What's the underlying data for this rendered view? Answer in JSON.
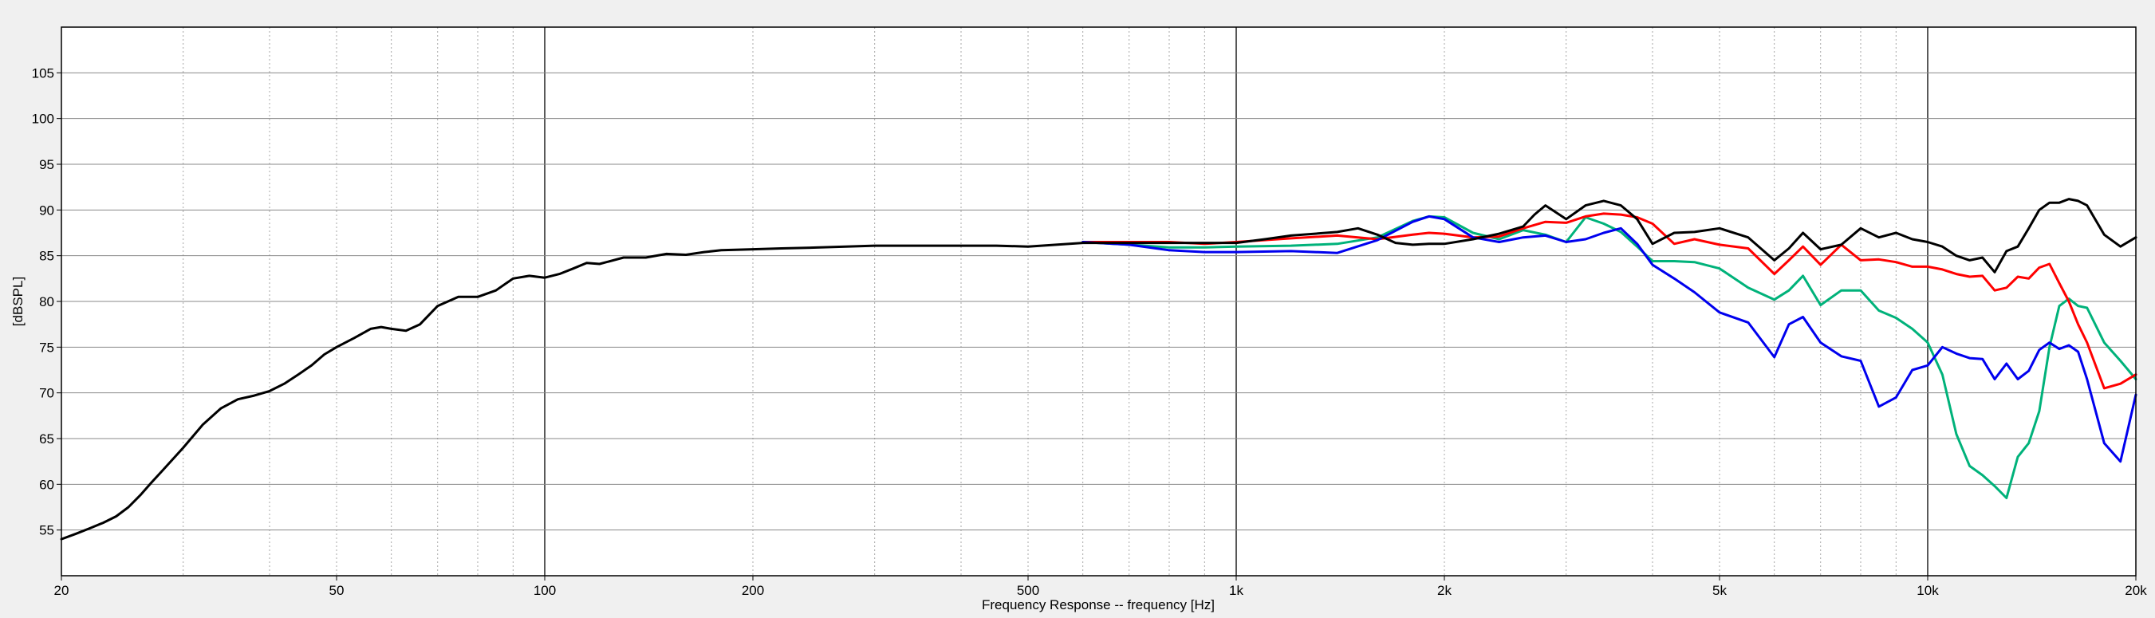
{
  "chart_data": {
    "type": "line",
    "xlabel": "Frequency Response -- frequency [Hz]",
    "ylabel": "[dBSPL]",
    "x_scale": "log",
    "xlim": [
      20,
      20000
    ],
    "ylim": [
      50,
      110
    ],
    "grid": true,
    "x_major_ticks": [
      {
        "value": 20,
        "label": "20"
      },
      {
        "value": 50,
        "label": "50"
      },
      {
        "value": 100,
        "label": "100"
      },
      {
        "value": 200,
        "label": "200"
      },
      {
        "value": 500,
        "label": "500"
      },
      {
        "value": 1000,
        "label": "1k"
      },
      {
        "value": 2000,
        "label": "2k"
      },
      {
        "value": 5000,
        "label": "5k"
      },
      {
        "value": 10000,
        "label": "10k"
      },
      {
        "value": 20000,
        "label": "20k"
      }
    ],
    "y_ticks": [
      {
        "value": 55,
        "label": "55"
      },
      {
        "value": 60,
        "label": "60"
      },
      {
        "value": 65,
        "label": "65"
      },
      {
        "value": 70,
        "label": "70"
      },
      {
        "value": 75,
        "label": "75"
      },
      {
        "value": 80,
        "label": "80"
      },
      {
        "value": 85,
        "label": "85"
      },
      {
        "value": 90,
        "label": "90"
      },
      {
        "value": 95,
        "label": "95"
      },
      {
        "value": 100,
        "label": "100"
      },
      {
        "value": 105,
        "label": "105"
      }
    ],
    "series": [
      {
        "color": "#00b27a",
        "x": [
          600,
          700,
          800,
          900,
          1000,
          1200,
          1400,
          1600,
          1800,
          1900,
          2000,
          2200,
          2400,
          2600,
          2800,
          3000,
          3200,
          3400,
          3600,
          3800,
          4000,
          4300,
          4600,
          5000,
          5500,
          6000,
          6300,
          6600,
          7000,
          7500,
          8000,
          8500,
          9000,
          9500,
          10000,
          10500,
          11000,
          11500,
          12000,
          12500,
          13000,
          13500,
          14000,
          14500,
          15000,
          15500,
          16000,
          16500,
          17000,
          18000,
          19000,
          20000
        ],
        "y": [
          86.5,
          86.2,
          85.9,
          85.9,
          86,
          86.1,
          86.3,
          87,
          88.8,
          89.3,
          89.2,
          87.5,
          86.8,
          87.8,
          87.3,
          86.5,
          89.2,
          88.5,
          87.6,
          86,
          84.4,
          84.4,
          84.3,
          83.6,
          81.5,
          80.2,
          81.2,
          82.8,
          79.6,
          81.2,
          81.2,
          79,
          78.2,
          77,
          75.5,
          72,
          65.5,
          62,
          61,
          59.8,
          58.5,
          63,
          64.5,
          68,
          75,
          79.5,
          80.3,
          79.5,
          79.3,
          75.5,
          73.5,
          71.5
        ]
      },
      {
        "color": "#ff0000",
        "x": [
          600,
          700,
          800,
          900,
          1000,
          1200,
          1400,
          1600,
          1800,
          1900,
          2000,
          2200,
          2400,
          2600,
          2800,
          3000,
          3200,
          3400,
          3600,
          3800,
          4000,
          4300,
          4600,
          5000,
          5500,
          6000,
          6300,
          6600,
          7000,
          7500,
          8000,
          8500,
          9000,
          9500,
          10000,
          10500,
          11000,
          11500,
          12000,
          12500,
          13000,
          13500,
          14000,
          14500,
          15000,
          15500,
          16000,
          16500,
          17000,
          18000,
          19000,
          20000
        ],
        "y": [
          86.5,
          86.5,
          86.5,
          86.3,
          86.5,
          86.9,
          87.2,
          86.8,
          87.3,
          87.5,
          87.4,
          87,
          87.1,
          88,
          88.7,
          88.6,
          89.3,
          89.6,
          89.5,
          89.2,
          88.5,
          86.3,
          86.8,
          86.2,
          85.8,
          83,
          84.5,
          86,
          84,
          86.2,
          84.5,
          84.6,
          84.3,
          83.8,
          83.8,
          83.5,
          83,
          82.7,
          82.8,
          81.2,
          81.5,
          82.7,
          82.5,
          83.7,
          84.1,
          82,
          80,
          77.5,
          75.5,
          70.5,
          71,
          72
        ]
      },
      {
        "color": "#0000ee",
        "x": [
          600,
          700,
          800,
          900,
          1000,
          1200,
          1400,
          1600,
          1800,
          1900,
          2000,
          2200,
          2400,
          2600,
          2800,
          3000,
          3200,
          3400,
          3600,
          3800,
          4000,
          4300,
          4600,
          5000,
          5500,
          6000,
          6300,
          6600,
          7000,
          7500,
          8000,
          8500,
          9000,
          9500,
          10000,
          10500,
          11000,
          11500,
          12000,
          12500,
          13000,
          13500,
          14000,
          14500,
          15000,
          15500,
          16000,
          16500,
          17000,
          18000,
          19000,
          20000
        ],
        "y": [
          86.5,
          86.2,
          85.6,
          85.4,
          85.4,
          85.5,
          85.3,
          86.7,
          88.7,
          89.3,
          89,
          87,
          86.5,
          87,
          87.2,
          86.5,
          86.8,
          87.5,
          88,
          86.3,
          84,
          82.5,
          81,
          78.8,
          77.7,
          73.9,
          77.5,
          78.3,
          75.5,
          74,
          73.5,
          68.5,
          69.5,
          72.5,
          73,
          75,
          74.3,
          73.8,
          73.7,
          71.5,
          73.2,
          71.5,
          72.4,
          74.7,
          75.5,
          74.8,
          75.2,
          74.5,
          71.5,
          64.5,
          62.5,
          69.8
        ]
      },
      {
        "color": "#000000",
        "x": [
          20,
          21,
          22,
          23,
          24,
          25,
          26,
          27,
          28,
          30,
          32,
          34,
          36,
          38,
          40,
          42,
          44,
          46,
          48,
          50,
          53,
          56,
          58,
          60,
          63,
          66,
          70,
          75,
          80,
          85,
          90,
          95,
          100,
          105,
          110,
          115,
          120,
          130,
          140,
          150,
          160,
          170,
          180,
          200,
          220,
          250,
          300,
          350,
          400,
          450,
          500,
          600,
          700,
          800,
          900,
          1000,
          1100,
          1200,
          1300,
          1400,
          1500,
          1600,
          1700,
          1800,
          1900,
          2000,
          2200,
          2400,
          2600,
          2700,
          2800,
          3000,
          3200,
          3400,
          3600,
          3800,
          4000,
          4300,
          4600,
          5000,
          5500,
          6000,
          6300,
          6600,
          7000,
          7500,
          8000,
          8500,
          9000,
          9500,
          10000,
          10500,
          11000,
          11500,
          12000,
          12500,
          13000,
          13500,
          14000,
          14500,
          15000,
          15500,
          16000,
          16500,
          17000,
          18000,
          19000,
          20000
        ],
        "y": [
          54,
          54.6,
          55.2,
          55.8,
          56.5,
          57.5,
          58.8,
          60.2,
          61.5,
          64,
          66.5,
          68.3,
          69.3,
          69.7,
          70.2,
          71,
          72,
          73,
          74.2,
          75,
          76,
          77,
          77.2,
          77,
          76.8,
          77.5,
          79.5,
          80.5,
          80.5,
          81.2,
          82.5,
          82.8,
          82.6,
          83,
          83.6,
          84.2,
          84.1,
          84.8,
          84.8,
          85.2,
          85.1,
          85.4,
          85.6,
          85.7,
          85.8,
          85.9,
          86.1,
          86.1,
          86.1,
          86.1,
          86,
          86.4,
          86.4,
          86.4,
          86.4,
          86.4,
          86.8,
          87.2,
          87.4,
          87.6,
          88,
          87.3,
          86.4,
          86.2,
          86.3,
          86.3,
          86.8,
          87.4,
          88.2,
          89.5,
          90.5,
          89,
          90.5,
          91,
          90.5,
          89,
          86.3,
          87.5,
          87.6,
          88,
          87,
          84.5,
          85.8,
          87.5,
          85.7,
          86.2,
          88,
          87,
          87.5,
          86.8,
          86.5,
          86,
          85,
          84.5,
          84.8,
          83.2,
          85.5,
          86,
          88,
          90,
          90.8,
          90.8,
          91.2,
          91,
          90.5,
          87.3,
          86,
          87
        ]
      }
    ]
  }
}
